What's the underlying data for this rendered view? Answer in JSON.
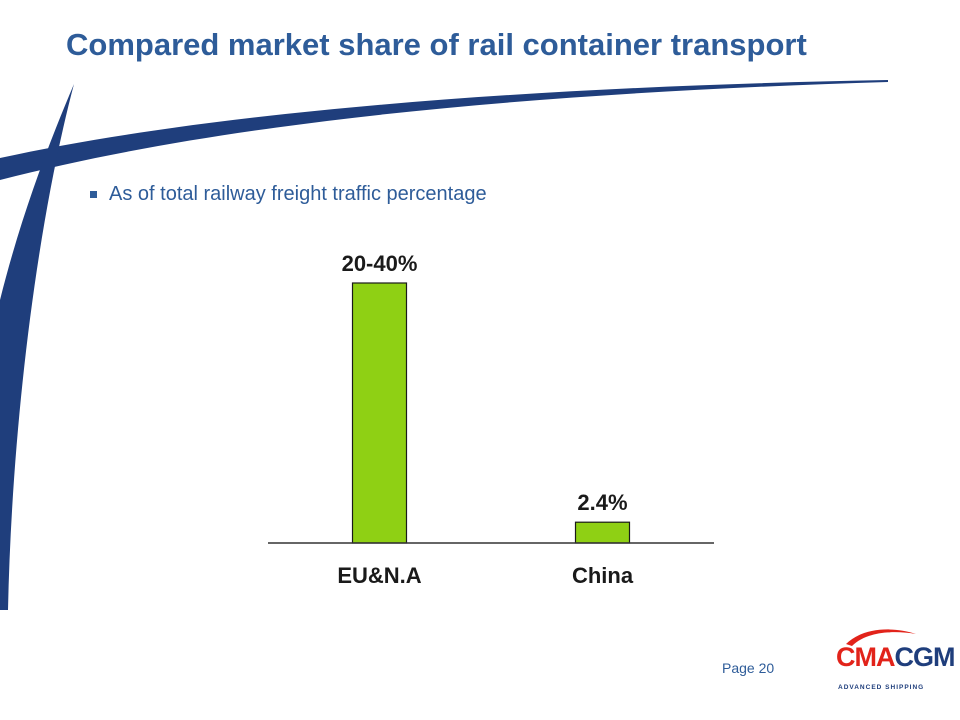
{
  "slide": {
    "title": "Compared market share of rail container transport",
    "bullet": "As of total railway freight traffic percentage",
    "page_label": "Page 20"
  },
  "logo": {
    "brand_cma": "CMA",
    "brand_cgm": "CGM",
    "tagline": "ADVANCED SHIPPING",
    "colors": {
      "red": "#E2231A",
      "blue": "#1F3E7C"
    }
  },
  "colors": {
    "title": "#2E5C99",
    "bar": "#8FD014",
    "bar_stroke": "#1a1a1a",
    "swoosh": "#1F3E7C"
  },
  "chart_data": {
    "type": "bar",
    "title": "",
    "xlabel": "",
    "ylabel": "",
    "categories": [
      "EU&N.A",
      "China"
    ],
    "values": [
      30,
      2.4
    ],
    "value_labels": [
      "20-40%",
      "2.4%"
    ],
    "ylim": [
      0,
      38
    ],
    "grid": false,
    "legend": "none"
  }
}
